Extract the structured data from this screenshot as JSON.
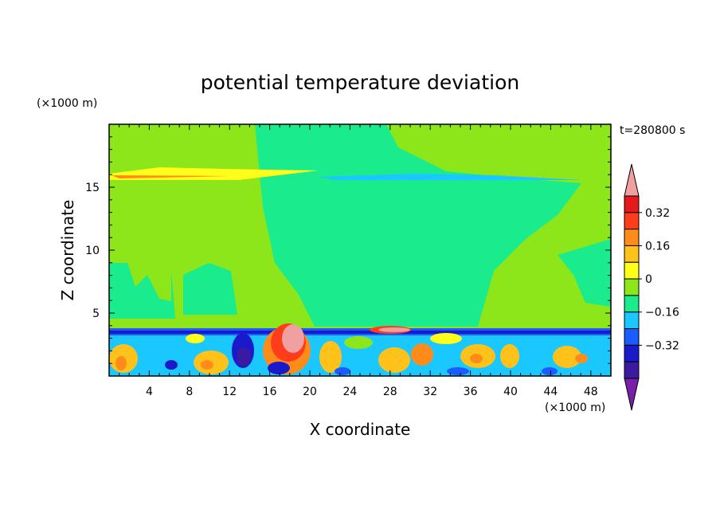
{
  "chart_data": {
    "type": "heatmap",
    "title": "potential temperature deviation",
    "xlabel": "X coordinate",
    "ylabel": "Z coordinate",
    "x_unit": "(×1000 m)",
    "z_unit": "(×1000 m)",
    "time_label": "t=280800 s",
    "xlim": [
      0,
      50
    ],
    "ylim": [
      0,
      20
    ],
    "x_ticks": [
      "4",
      "8",
      "12",
      "16",
      "20",
      "24",
      "28",
      "32",
      "36",
      "40",
      "44",
      "48"
    ],
    "y_ticks": [
      "5",
      "10",
      "15"
    ],
    "colorbar": {
      "labels": [
        "0.32",
        "0.16",
        "0",
        "−0.16",
        "−0.32"
      ],
      "levels": [
        -0.48,
        -0.4,
        -0.32,
        -0.24,
        -0.16,
        -0.08,
        0,
        0.08,
        0.16,
        0.24,
        0.32,
        0.4,
        0.48
      ],
      "colors": [
        "#7a1fa8",
        "#3a1aa0",
        "#1a1acc",
        "#1a5cff",
        "#1ac8ff",
        "#1aeb8c",
        "#8ce61a",
        "#ffff1a",
        "#ffc21a",
        "#ff8c1a",
        "#ff3d1a",
        "#e61a1a",
        "#f0a0a0"
      ]
    }
  }
}
